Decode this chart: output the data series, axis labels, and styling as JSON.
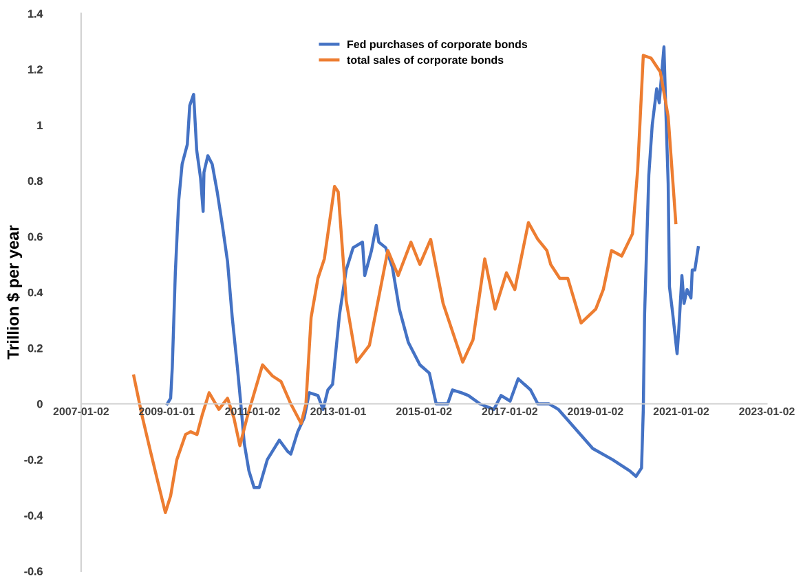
{
  "chart_data": {
    "type": "line",
    "ylabel": "Trillion $ per year",
    "xlim": [
      "2007-01-02",
      "2023-01-02"
    ],
    "xticks": [
      "2007-01-02",
      "2009-01-01",
      "2011-01-02",
      "2013-01-01",
      "2015-01-02",
      "2017-01-02",
      "2019-01-02",
      "2021-01-02",
      "2023-01-02"
    ],
    "ylim": [
      -0.6,
      1.4
    ],
    "yticks": [
      -0.6,
      -0.4,
      -0.2,
      0,
      0.2,
      0.4,
      0.6,
      0.8,
      1,
      1.2,
      1.4
    ],
    "grid": false,
    "legend": "top",
    "marker": "none",
    "line_style": "solid",
    "series": [
      {
        "name": "Fed purchases of corporate bonds",
        "color": "#4472c4",
        "x": [
          "2009-01-05",
          "2009-02-03",
          "2009-02-17",
          "2009-03-15",
          "2009-04-13",
          "2009-05-12",
          "2009-06-25",
          "2009-07-16",
          "2009-08-18",
          "2009-09-13",
          "2009-10-16",
          "2009-11-07",
          "2009-11-14",
          "2009-12-17",
          "2010-01-23",
          "2010-03-07",
          "2010-04-20",
          "2010-06-03",
          "2010-07-13",
          "2010-08-26",
          "2010-09-24",
          "2010-10-23",
          "2010-12-02",
          "2011-01-15",
          "2011-02-28",
          "2011-05-08",
          "2011-08-18",
          "2011-10-27",
          "2011-11-24",
          "2012-01-22",
          "2012-03-17",
          "2012-04-30",
          "2012-07-12",
          "2012-08-25",
          "2012-10-05",
          "2012-11-14",
          "2013-01-12",
          "2013-03-10",
          "2013-05-08",
          "2013-07-27",
          "2013-08-15",
          "2013-10-12",
          "2013-11-21",
          "2013-12-13",
          "2014-02-10",
          "2014-04-08",
          "2014-06-06",
          "2014-08-22",
          "2014-11-28",
          "2015-02-17",
          "2015-04-16",
          "2015-07-23",
          "2015-09-02",
          "2015-11-17",
          "2016-01-15",
          "2016-04-23",
          "2016-08-19",
          "2016-10-20",
          "2017-01-05",
          "2017-03-15",
          "2017-06-28",
          "2017-08-29",
          "2017-12-03",
          "2018-02-21",
          "2018-12-10",
          "2019-05-27",
          "2019-10-20",
          "2019-12-14",
          "2020-01-30",
          "2020-02-14",
          "2020-02-25",
          "2020-04-01",
          "2020-04-30",
          "2020-06-07",
          "2020-06-29",
          "2020-08-08",
          "2020-08-22",
          "2020-09-13",
          "2020-09-24",
          "2020-10-20",
          "2020-11-28",
          "2020-12-13",
          "2021-01-08",
          "2021-01-26",
          "2021-02-21",
          "2021-03-26",
          "2021-04-06",
          "2021-04-28",
          "2021-05-27"
        ],
        "values": [
          0.0,
          0.02,
          0.13,
          0.47,
          0.73,
          0.86,
          0.93,
          1.07,
          1.11,
          0.91,
          0.81,
          0.69,
          0.83,
          0.89,
          0.86,
          0.76,
          0.64,
          0.51,
          0.31,
          0.13,
          0.0,
          -0.14,
          -0.24,
          -0.3,
          -0.3,
          -0.2,
          -0.13,
          -0.17,
          -0.18,
          -0.1,
          -0.05,
          0.04,
          0.03,
          -0.02,
          0.05,
          0.07,
          0.32,
          0.48,
          0.56,
          0.58,
          0.46,
          0.55,
          0.64,
          0.58,
          0.56,
          0.49,
          0.34,
          0.22,
          0.14,
          0.11,
          0.0,
          0.0,
          0.05,
          0.04,
          0.03,
          0.0,
          -0.02,
          0.03,
          0.01,
          0.09,
          0.05,
          0.0,
          0.0,
          -0.02,
          -0.16,
          -0.2,
          -0.24,
          -0.26,
          -0.23,
          -0.02,
          0.32,
          0.82,
          1.0,
          1.13,
          1.08,
          1.28,
          1.08,
          0.79,
          0.42,
          0.33,
          0.18,
          0.27,
          0.46,
          0.36,
          0.41,
          0.38,
          0.48,
          0.48,
          0.56
        ]
      },
      {
        "name": "total sales of corporate bonds",
        "color": "#ed7d31",
        "x": [
          "2008-03-26",
          "2008-06-03",
          "2008-08-15",
          "2008-10-23",
          "2008-12-20",
          "2009-02-03",
          "2009-03-28",
          "2009-06-10",
          "2009-07-23",
          "2009-09-16",
          "2009-10-30",
          "2009-12-28",
          "2010-03-21",
          "2010-06-03",
          "2010-07-27",
          "2010-09-16",
          "2010-11-22",
          "2011-03-28",
          "2011-06-21",
          "2011-09-02",
          "2011-11-24",
          "2012-02-20",
          "2012-04-01",
          "2012-05-15",
          "2012-07-12",
          "2012-09-05",
          "2012-12-01",
          "2013-01-01",
          "2013-03-10",
          "2013-06-07",
          "2013-09-24",
          "2014-02-28",
          "2014-05-27",
          "2014-09-13",
          "2014-11-28",
          "2015-02-28",
          "2015-06-14",
          "2015-11-28",
          "2016-02-24",
          "2016-06-03",
          "2016-08-30",
          "2016-12-05",
          "2017-02-14",
          "2017-06-10",
          "2017-08-29",
          "2017-11-14",
          "2017-12-17",
          "2018-03-04",
          "2018-05-12",
          "2018-09-02",
          "2019-01-05",
          "2019-03-10",
          "2019-05-19",
          "2019-08-14",
          "2019-11-14",
          "2019-12-28",
          "2020-02-14",
          "2020-04-20",
          "2020-07-08",
          "2020-09-13",
          "2020-11-17"
        ],
        "values": [
          0.1,
          -0.04,
          -0.17,
          -0.29,
          -0.39,
          -0.33,
          -0.2,
          -0.11,
          -0.1,
          -0.11,
          -0.04,
          0.04,
          -0.02,
          0.02,
          -0.05,
          -0.15,
          -0.04,
          0.14,
          0.1,
          0.08,
          0.0,
          -0.07,
          0.0,
          0.31,
          0.45,
          0.52,
          0.78,
          0.76,
          0.37,
          0.15,
          0.21,
          0.55,
          0.46,
          0.58,
          0.5,
          0.59,
          0.36,
          0.15,
          0.23,
          0.52,
          0.34,
          0.47,
          0.41,
          0.65,
          0.59,
          0.55,
          0.5,
          0.45,
          0.45,
          0.29,
          0.34,
          0.41,
          0.55,
          0.53,
          0.61,
          0.84,
          1.25,
          1.24,
          1.19,
          1.03,
          0.65
        ]
      }
    ]
  }
}
